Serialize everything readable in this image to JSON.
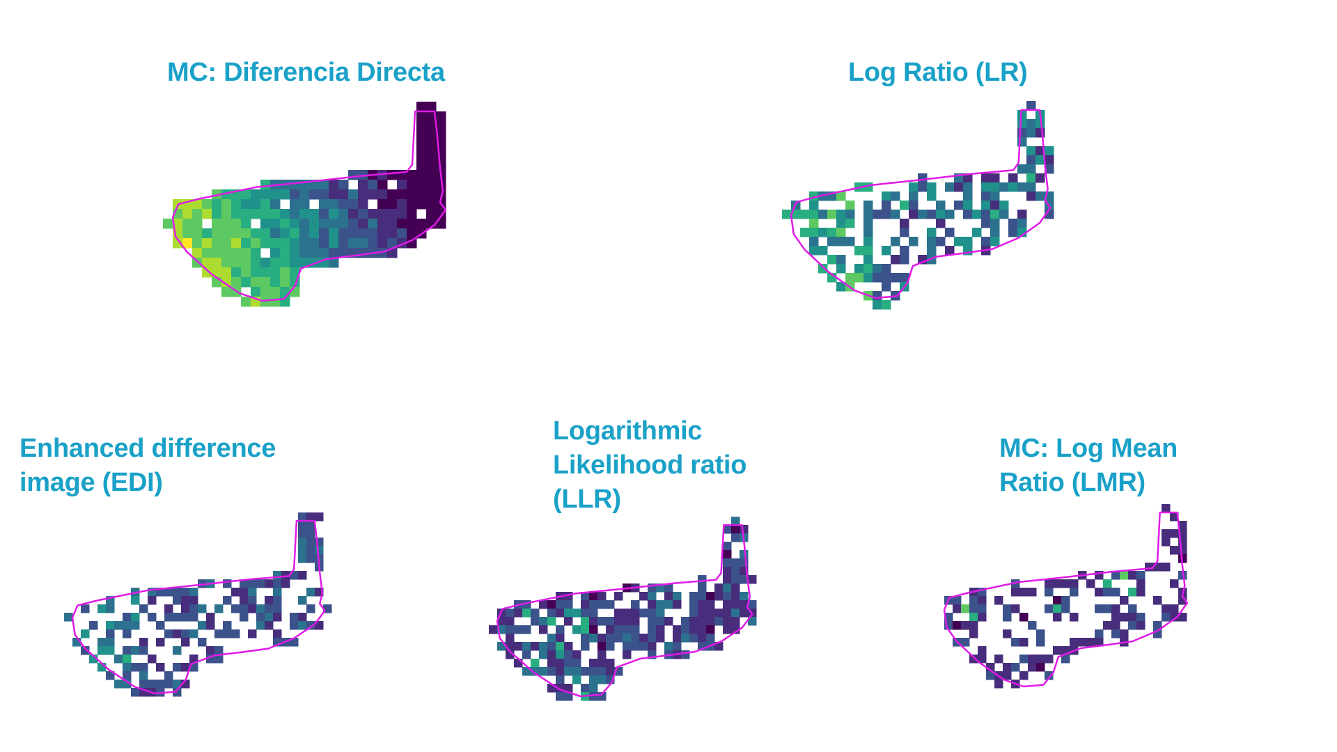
{
  "panels": [
    {
      "id": "mc-dd",
      "title": "MC: Diferencia Directa"
    },
    {
      "id": "lr",
      "title": "Log Ratio (LR)"
    },
    {
      "id": "edi",
      "title": "Enhanced difference\nimage (EDI)"
    },
    {
      "id": "llr",
      "title": "Logarithmic\nLikelihood ratio\n(LLR)"
    },
    {
      "id": "lmr",
      "title": "MC: Log Mean\nRatio (LMR)"
    }
  ],
  "colors": {
    "title": "#1aa1c8",
    "boundary": "#e01be8",
    "colormap": [
      "#440154",
      "#472d7b",
      "#3b528b",
      "#2c728e",
      "#21918c",
      "#28ae80",
      "#5ec962",
      "#addc30",
      "#fde725"
    ]
  }
}
